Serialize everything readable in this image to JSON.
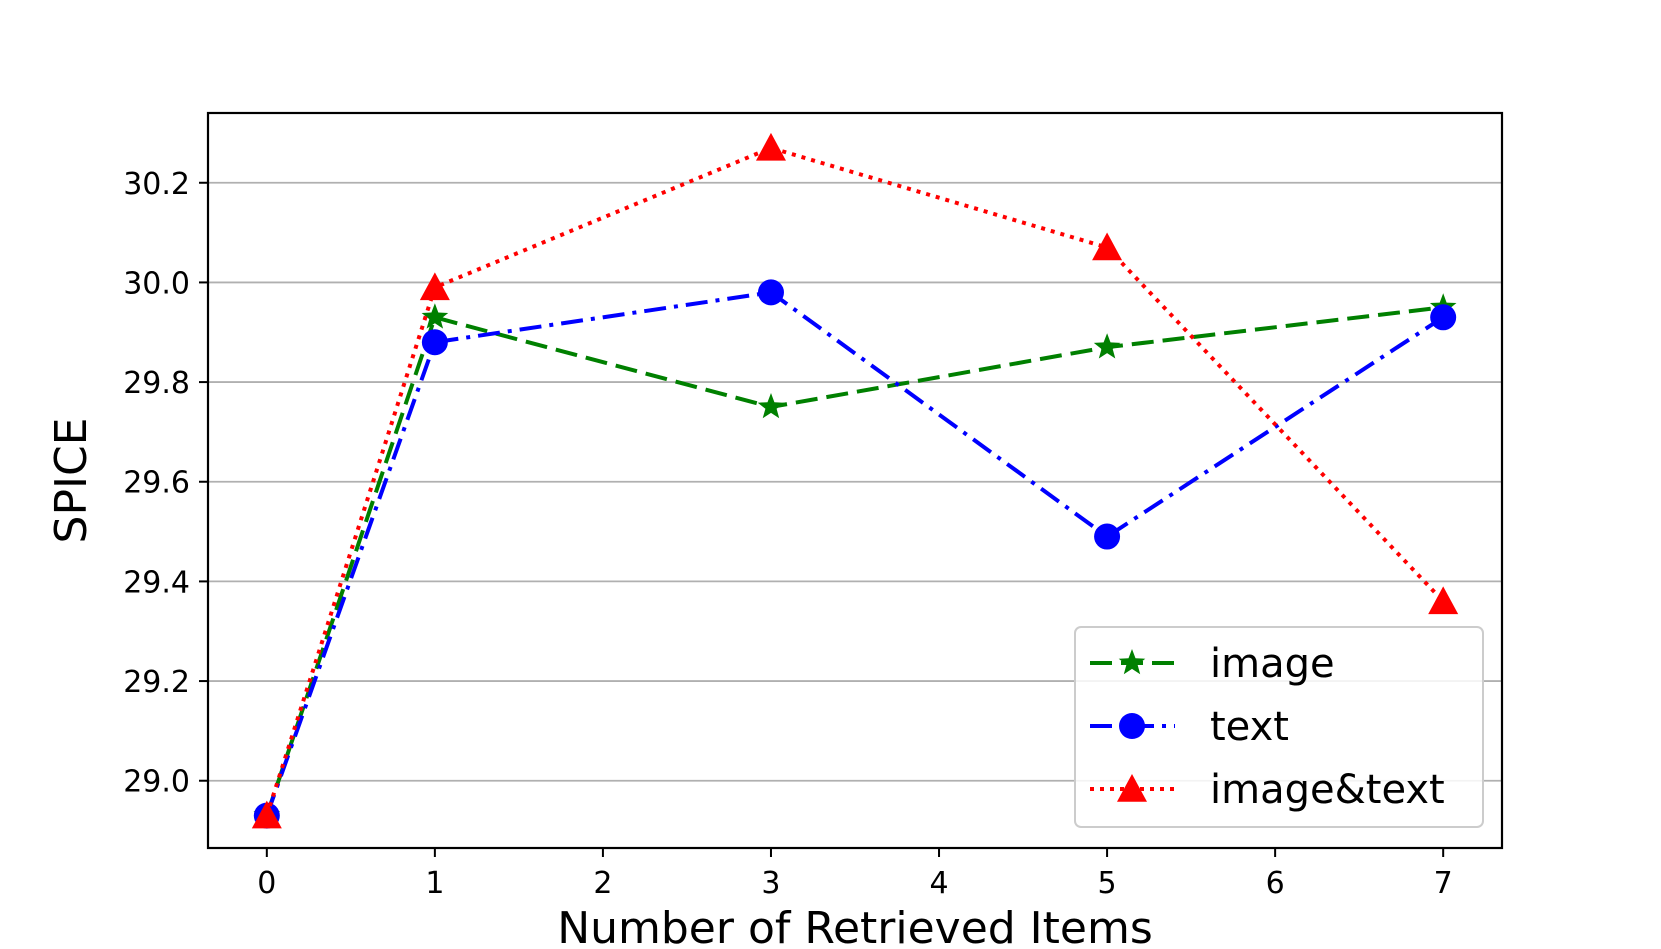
{
  "chart_data": {
    "type": "line",
    "title": "",
    "xlabel": "Number of Retrieved Items",
    "ylabel": "SPICE",
    "xlim": [
      -0.35,
      7.35
    ],
    "ylim": [
      28.865,
      30.34
    ],
    "xticks": [
      0,
      1,
      2,
      3,
      4,
      5,
      6,
      7
    ],
    "xtick_labels": [
      "0",
      "1",
      "2",
      "3",
      "4",
      "5",
      "6",
      "7"
    ],
    "yticks": [
      29.0,
      29.2,
      29.4,
      29.6,
      29.8,
      30.0,
      30.2
    ],
    "ytick_labels": [
      "29.0",
      "29.2",
      "29.4",
      "29.6",
      "29.8",
      "30.0",
      "30.2"
    ],
    "grid": "horizontal",
    "legend_position": "lower-right",
    "series": [
      {
        "name": "image",
        "x": [
          0,
          1,
          3,
          5,
          7
        ],
        "values": [
          28.93,
          29.93,
          29.75,
          29.87,
          29.95
        ],
        "color": "#008000",
        "linestyle": "dashed",
        "marker": "star"
      },
      {
        "name": "text",
        "x": [
          0,
          1,
          3,
          5,
          7
        ],
        "values": [
          28.93,
          29.88,
          29.98,
          29.49,
          29.93
        ],
        "color": "#0000ff",
        "linestyle": "dashdot",
        "marker": "circle"
      },
      {
        "name": "image&text",
        "x": [
          0,
          1,
          3,
          5,
          7
        ],
        "values": [
          28.93,
          29.99,
          30.27,
          30.07,
          29.36
        ],
        "color": "#ff0000",
        "linestyle": "dotted",
        "marker": "triangle"
      }
    ]
  }
}
